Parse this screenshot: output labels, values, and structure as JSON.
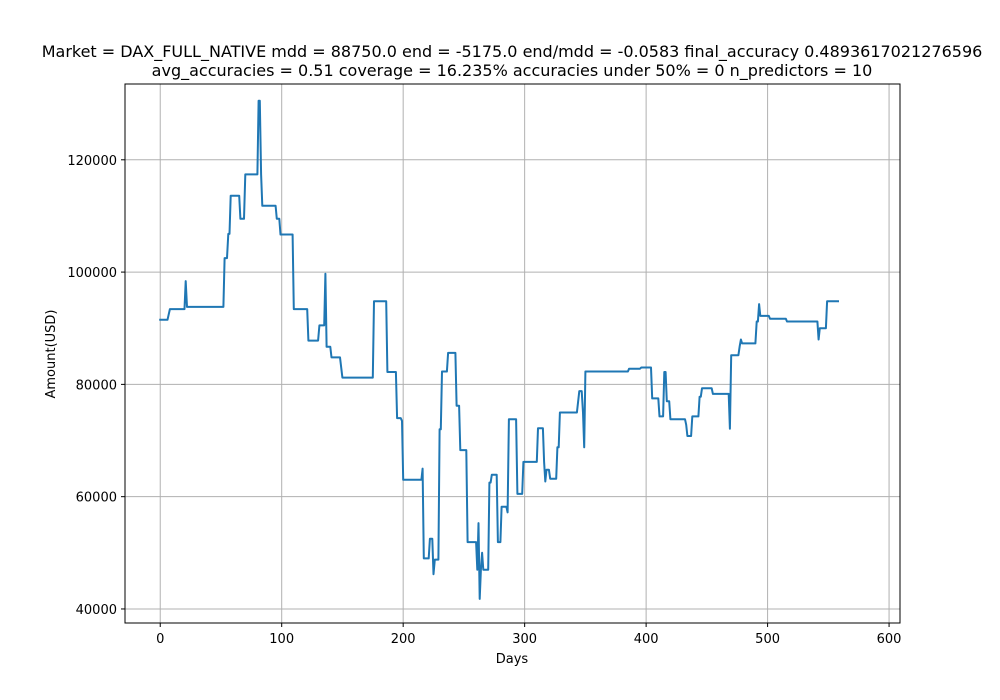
{
  "chart_data": {
    "type": "line",
    "title_lines": [
      "Market = DAX_FULL_NATIVE mdd = 88750.0 end = -5175.0 end/mdd = -0.0583 final_accuracy 0.4893617021276596",
      "avg_accuracies = 0.51 coverage = 16.235%  accuracies under 50% = 0 n_predictors = 10"
    ],
    "xlabel": "Days",
    "ylabel": "Amount(USD)",
    "xlim": [
      -29,
      609
    ],
    "ylim": [
      37500,
      133500
    ],
    "x_ticks": [
      0,
      100,
      200,
      300,
      400,
      500,
      600
    ],
    "y_ticks": [
      40000,
      60000,
      80000,
      100000,
      120000
    ],
    "x_tick_labels": [
      "0",
      "100",
      "200",
      "300",
      "400",
      "500",
      "600"
    ],
    "y_tick_labels": [
      "40000",
      "60000",
      "80000",
      "100000",
      "120000"
    ],
    "grid": true,
    "line_color": "#1f77b4",
    "series": [
      {
        "points": [
          [
            0,
            91500
          ],
          [
            6,
            91500
          ],
          [
            8,
            93400
          ],
          [
            20,
            93400
          ],
          [
            21,
            98400
          ],
          [
            22,
            93800
          ],
          [
            52,
            93800
          ],
          [
            53,
            102500
          ],
          [
            55,
            102500
          ],
          [
            56,
            106800
          ],
          [
            57,
            106800
          ],
          [
            58,
            113600
          ],
          [
            65,
            113600
          ],
          [
            66,
            109500
          ],
          [
            69,
            109500
          ],
          [
            70,
            117400
          ],
          [
            80,
            117400
          ],
          [
            81,
            130500
          ],
          [
            82,
            130500
          ],
          [
            83,
            117400
          ],
          [
            84,
            111800
          ],
          [
            95,
            111800
          ],
          [
            96,
            109500
          ],
          [
            98,
            109500
          ],
          [
            99,
            106700
          ],
          [
            109,
            106700
          ],
          [
            110,
            93400
          ],
          [
            121,
            93400
          ],
          [
            122,
            87800
          ],
          [
            130,
            87800
          ],
          [
            131,
            90500
          ],
          [
            135,
            90500
          ],
          [
            136,
            99700
          ],
          [
            137,
            86700
          ],
          [
            140,
            86700
          ],
          [
            141,
            84800
          ],
          [
            148,
            84800
          ],
          [
            150,
            81200
          ],
          [
            175,
            81200
          ],
          [
            176,
            94800
          ],
          [
            186,
            94800
          ],
          [
            187,
            82200
          ],
          [
            194,
            82200
          ],
          [
            195,
            74000
          ],
          [
            198,
            74000
          ],
          [
            199,
            73500
          ],
          [
            200,
            63000
          ],
          [
            215,
            63000
          ],
          [
            216,
            65000
          ],
          [
            217,
            49000
          ],
          [
            221,
            49000
          ],
          [
            222,
            52500
          ],
          [
            224,
            52500
          ],
          [
            225,
            46200
          ],
          [
            226,
            48800
          ],
          [
            229,
            48800
          ],
          [
            230,
            72000
          ],
          [
            231,
            72000
          ],
          [
            232,
            82300
          ],
          [
            236,
            82300
          ],
          [
            237,
            85600
          ],
          [
            243,
            85600
          ],
          [
            244,
            76200
          ],
          [
            246,
            76200
          ],
          [
            247,
            68300
          ],
          [
            252,
            68300
          ],
          [
            253,
            51900
          ],
          [
            260,
            51900
          ],
          [
            261,
            47000
          ],
          [
            262,
            55300
          ],
          [
            263,
            41800
          ],
          [
            264,
            47000
          ],
          [
            265,
            50000
          ],
          [
            266,
            47000
          ],
          [
            270,
            47000
          ],
          [
            271,
            62500
          ],
          [
            272,
            62500
          ],
          [
            273,
            63900
          ],
          [
            277,
            63900
          ],
          [
            278,
            51900
          ],
          [
            280,
            51900
          ],
          [
            281,
            58200
          ],
          [
            285,
            58200
          ],
          [
            286,
            57200
          ],
          [
            287,
            73800
          ],
          [
            293,
            73800
          ],
          [
            294,
            60500
          ],
          [
            298,
            60500
          ],
          [
            299,
            66200
          ],
          [
            310,
            66200
          ],
          [
            311,
            72200
          ],
          [
            315,
            72200
          ],
          [
            316,
            66200
          ],
          [
            317,
            62700
          ],
          [
            318,
            64800
          ],
          [
            320,
            64800
          ],
          [
            321,
            63200
          ],
          [
            326,
            63200
          ],
          [
            327,
            68800
          ],
          [
            328,
            68800
          ],
          [
            329,
            75000
          ],
          [
            343,
            75000
          ],
          [
            345,
            78800
          ],
          [
            347,
            78800
          ],
          [
            348,
            75000
          ],
          [
            349,
            68800
          ],
          [
            350,
            82300
          ],
          [
            385,
            82300
          ],
          [
            386,
            82800
          ],
          [
            395,
            82800
          ],
          [
            396,
            83000
          ],
          [
            404,
            83000
          ],
          [
            405,
            77500
          ],
          [
            410,
            77500
          ],
          [
            411,
            74300
          ],
          [
            414,
            74300
          ],
          [
            415,
            82200
          ],
          [
            416,
            82200
          ],
          [
            417,
            77000
          ],
          [
            419,
            77000
          ],
          [
            420,
            73800
          ],
          [
            432,
            73800
          ],
          [
            433,
            72800
          ],
          [
            434,
            70800
          ],
          [
            437,
            70800
          ],
          [
            438,
            74300
          ],
          [
            443,
            74300
          ],
          [
            444,
            77800
          ],
          [
            445,
            77800
          ],
          [
            446,
            79300
          ],
          [
            454,
            79300
          ],
          [
            455,
            78300
          ],
          [
            468,
            78300
          ],
          [
            469,
            72100
          ],
          [
            470,
            85200
          ],
          [
            476,
            85200
          ],
          [
            477,
            86800
          ],
          [
            478,
            88000
          ],
          [
            479,
            87300
          ],
          [
            490,
            87300
          ],
          [
            491,
            91200
          ],
          [
            492,
            91200
          ],
          [
            493,
            94300
          ],
          [
            494,
            92200
          ],
          [
            501,
            92200
          ],
          [
            502,
            91700
          ],
          [
            515,
            91700
          ],
          [
            516,
            91200
          ],
          [
            541,
            91200
          ],
          [
            542,
            88000
          ],
          [
            543,
            90000
          ],
          [
            548,
            90000
          ],
          [
            549,
            94800
          ],
          [
            558,
            94800
          ]
        ]
      }
    ]
  }
}
